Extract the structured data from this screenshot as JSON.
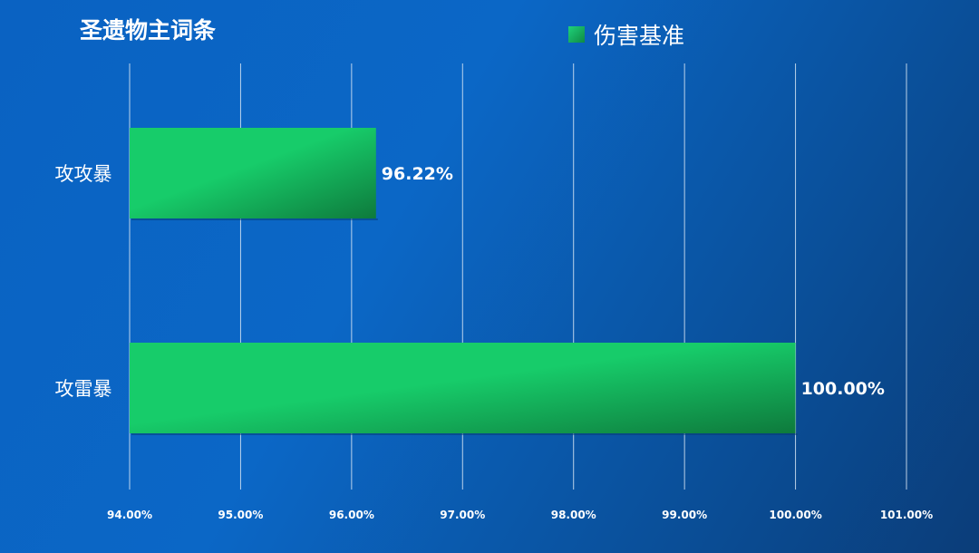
{
  "chart_data": {
    "type": "bar",
    "orientation": "horizontal",
    "title": "圣遗物主词条",
    "categories": [
      "攻攻暴",
      "攻雷暴"
    ],
    "series": [
      {
        "name": "伤害基准",
        "values": [
          96.22,
          100.0
        ]
      }
    ],
    "data_labels": [
      "96.22%",
      "100.00%"
    ],
    "xlim": [
      94,
      101
    ],
    "x_ticks": [
      94,
      95,
      96,
      97,
      98,
      99,
      100,
      101
    ],
    "x_tick_labels": [
      "94.00%",
      "95.00%",
      "96.00%",
      "97.00%",
      "98.00%",
      "99.00%",
      "100.00%",
      "101.00%"
    ],
    "grid": true,
    "legend_position": "top-right"
  },
  "colors": {
    "bar_light": "#17cc6a",
    "bar_dark": "#0e7a3c",
    "gridline": "#dbe7f5"
  }
}
